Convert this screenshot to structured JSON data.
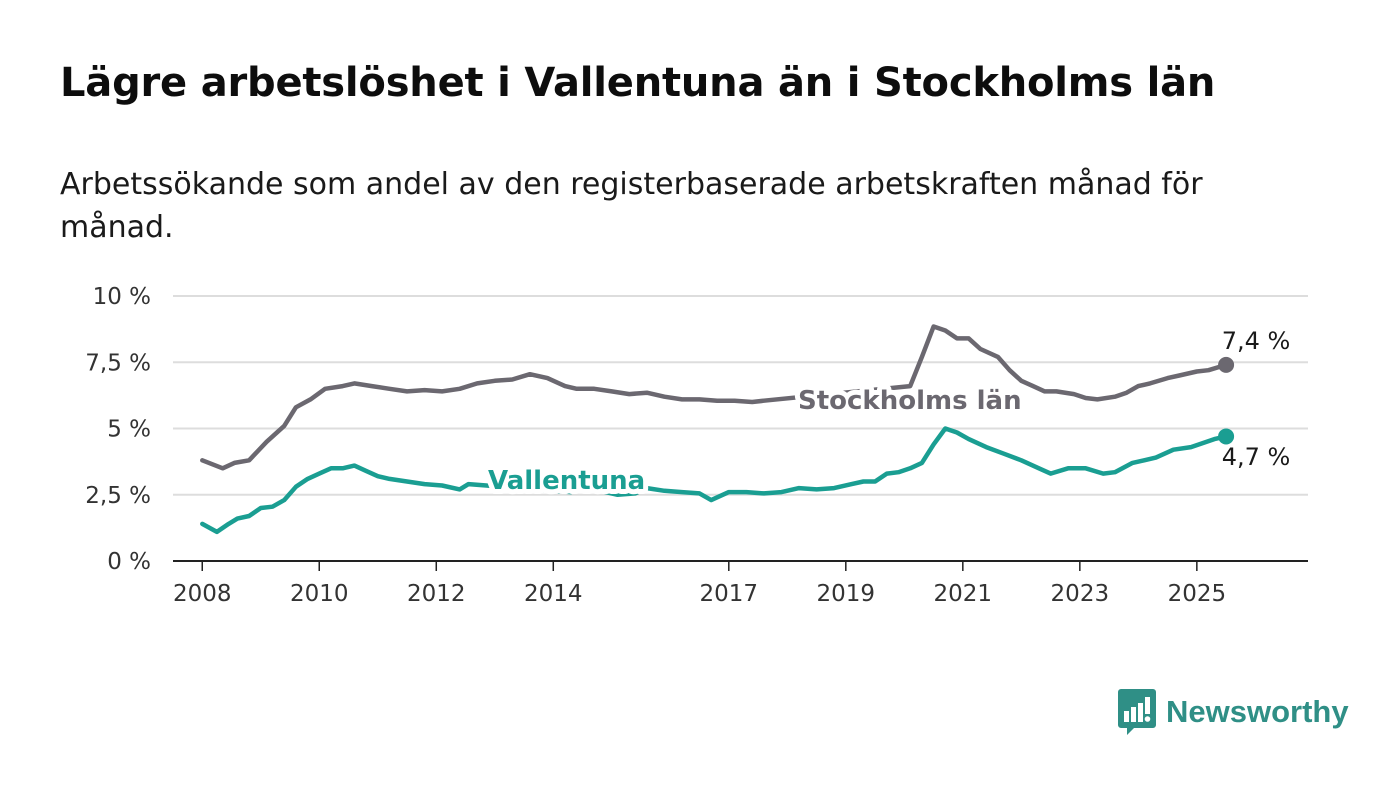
{
  "title": "Lägre arbetslöshet i Vallentuna än i Stockholms län",
  "subtitle": "Arbetssökande som andel av den registerbaserade arbetskraften månad för månad.",
  "brand": {
    "name": "Newsworthy",
    "color": "#2f8f86",
    "icon": "bar-chart-speech-bubble-icon"
  },
  "chart_data": {
    "type": "line",
    "title": "Lägre arbetslöshet i Vallentuna än i Stockholms län",
    "xlabel": "",
    "ylabel": "",
    "ylim": [
      0,
      10
    ],
    "xlim": [
      2007.5,
      2026.9
    ],
    "y_ticks": [
      {
        "value": 0,
        "label": "0 %"
      },
      {
        "value": 2.5,
        "label": "2,5 %"
      },
      {
        "value": 5,
        "label": "5 %"
      },
      {
        "value": 7.5,
        "label": "7,5 %"
      },
      {
        "value": 10,
        "label": "10 %"
      }
    ],
    "x_ticks": [
      {
        "value": 2008,
        "label": "2008"
      },
      {
        "value": 2010,
        "label": "2010"
      },
      {
        "value": 2012,
        "label": "2012"
      },
      {
        "value": 2014,
        "label": "2014"
      },
      {
        "value": 2017,
        "label": "2017"
      },
      {
        "value": 2019,
        "label": "2019"
      },
      {
        "value": 2021,
        "label": "2021"
      },
      {
        "value": 2023,
        "label": "2023"
      },
      {
        "value": 2025,
        "label": "2025"
      }
    ],
    "grid": true,
    "legend": "inline labels",
    "series": [
      {
        "name": "Stockholms län",
        "color": "#6b6870",
        "end_label": "7,4 %",
        "x": [
          2008.0,
          2008.35,
          2008.55,
          2008.8,
          2009.1,
          2009.4,
          2009.6,
          2009.85,
          2010.1,
          2010.4,
          2010.6,
          2010.9,
          2011.2,
          2011.5,
          2011.8,
          2012.1,
          2012.4,
          2012.7,
          2013.0,
          2013.3,
          2013.6,
          2013.9,
          2014.2,
          2014.4,
          2014.7,
          2015.0,
          2015.3,
          2015.6,
          2015.9,
          2016.2,
          2016.5,
          2016.8,
          2017.1,
          2017.4,
          2017.6,
          2020.1,
          2020.3,
          2020.5,
          2020.7,
          2020.9,
          2021.1,
          2021.3,
          2021.6,
          2021.8,
          2022.0,
          2022.2,
          2022.4,
          2022.6,
          2022.9,
          2023.1,
          2023.3,
          2023.6,
          2023.8,
          2024.0,
          2024.2,
          2024.5,
          2024.7,
          2025.0,
          2025.2,
          2025.5
        ],
        "values": [
          3.8,
          3.5,
          3.7,
          3.8,
          4.5,
          5.1,
          5.8,
          6.1,
          6.5,
          6.6,
          6.7,
          6.6,
          6.5,
          6.4,
          6.45,
          6.4,
          6.5,
          6.7,
          6.8,
          6.85,
          7.05,
          6.9,
          6.6,
          6.5,
          6.5,
          6.4,
          6.3,
          6.35,
          6.2,
          6.1,
          6.1,
          6.05,
          6.05,
          6.0,
          6.05,
          6.6,
          7.7,
          8.85,
          8.7,
          8.4,
          8.4,
          8.0,
          7.7,
          7.2,
          6.8,
          6.6,
          6.4,
          6.4,
          6.3,
          6.15,
          6.1,
          6.2,
          6.35,
          6.6,
          6.7,
          6.9,
          7.0,
          7.15,
          7.2,
          7.4
        ]
      },
      {
        "name": "Vallentuna",
        "color": "#1a9e92",
        "end_label": "4,7 %",
        "x": [
          2008.0,
          2008.25,
          2008.45,
          2008.6,
          2008.8,
          2009.0,
          2009.2,
          2009.4,
          2009.6,
          2009.8,
          2010.0,
          2010.2,
          2010.4,
          2010.6,
          2010.8,
          2011.0,
          2011.2,
          2011.5,
          2011.8,
          2012.1,
          2012.4,
          2012.55,
          2014.3,
          2014.5,
          2014.8,
          2015.1,
          2015.4,
          2015.6,
          2015.9,
          2016.2,
          2016.5,
          2016.7,
          2017.0,
          2017.3,
          2017.6,
          2017.9,
          2018.2,
          2018.5,
          2018.8,
          2019.1,
          2019.3,
          2019.5,
          2019.7,
          2019.9,
          2020.1,
          2020.3,
          2020.5,
          2020.7,
          2020.9,
          2021.1,
          2021.4,
          2021.7,
          2022.0,
          2022.3,
          2022.5,
          2022.8,
          2023.1,
          2023.4,
          2023.6,
          2023.9,
          2024.1,
          2024.3,
          2024.6,
          2024.9,
          2025.1,
          2025.3,
          2025.5
        ],
        "values": [
          1.4,
          1.1,
          1.4,
          1.6,
          1.7,
          2.0,
          2.05,
          2.3,
          2.8,
          3.1,
          3.3,
          3.5,
          3.5,
          3.6,
          3.4,
          3.2,
          3.1,
          3.0,
          2.9,
          2.85,
          2.7,
          2.9,
          2.6,
          2.75,
          2.65,
          2.5,
          2.55,
          2.75,
          2.65,
          2.6,
          2.55,
          2.3,
          2.6,
          2.6,
          2.55,
          2.6,
          2.75,
          2.7,
          2.75,
          2.9,
          3.0,
          3.0,
          3.3,
          3.35,
          3.5,
          3.7,
          4.4,
          5.0,
          4.85,
          4.6,
          4.3,
          4.05,
          3.8,
          3.5,
          3.3,
          3.5,
          3.5,
          3.3,
          3.35,
          3.7,
          3.8,
          3.9,
          4.2,
          4.3,
          4.45,
          4.6,
          4.7
        ]
      }
    ]
  }
}
